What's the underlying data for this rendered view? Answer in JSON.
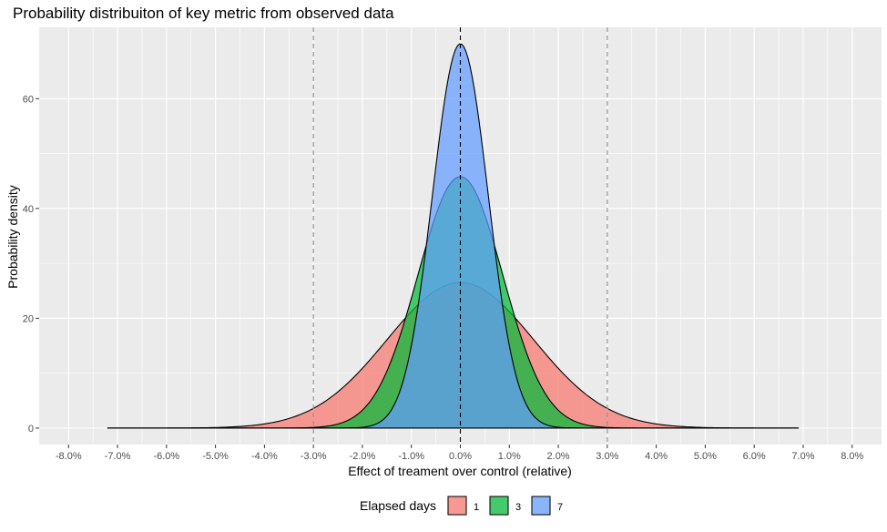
{
  "chart_data": {
    "type": "area",
    "title": "Probability distribuiton of key metric from observed data",
    "xlabel": "Effect of treament over control (relative)",
    "ylabel": "Probability density",
    "xlim": [
      -8.6,
      8.6
    ],
    "ylim": [
      -3,
      73
    ],
    "x_ticks": [
      -8,
      -7,
      -6,
      -5,
      -4,
      -3,
      -2,
      -1,
      0,
      1,
      2,
      3,
      4,
      5,
      6,
      7,
      8
    ],
    "x_tick_labels": [
      "-8.0%",
      "-7.0%",
      "-6.0%",
      "-5.0%",
      "-4.0%",
      "-3.0%",
      "-2.0%",
      "-1.0%",
      "0.0%",
      "1.0%",
      "2.0%",
      "3.0%",
      "4.0%",
      "5.0%",
      "6.0%",
      "7.0%",
      "8.0%"
    ],
    "y_ticks": [
      0,
      20,
      40,
      60
    ],
    "y_tick_labels": [
      "0",
      "20",
      "40",
      "60"
    ],
    "grid": true,
    "x_range_of_curves": [
      -7.2,
      6.9
    ],
    "vlines": [
      {
        "x": -3.0,
        "style": "dashed",
        "color": "#8c8c8c"
      },
      {
        "x": 0.0,
        "style": "dashed",
        "color": "#000000"
      },
      {
        "x": 3.0,
        "style": "dashed",
        "color": "#8c8c8c"
      }
    ],
    "legend": {
      "title": "Elapsed days",
      "position": "bottom",
      "entries": [
        "1",
        "3",
        "7"
      ]
    },
    "series": [
      {
        "name": "1",
        "color": "#f8766d",
        "distribution": "normal",
        "mean": 0.0,
        "sd": 1.5,
        "peak": 26.5
      },
      {
        "name": "3",
        "color": "#00ba38",
        "distribution": "normal",
        "mean": 0.0,
        "sd": 0.87,
        "peak": 45.8
      },
      {
        "name": "7",
        "color": "#619cff",
        "distribution": "normal",
        "mean": 0.0,
        "sd": 0.57,
        "peak": 70.0
      }
    ]
  }
}
